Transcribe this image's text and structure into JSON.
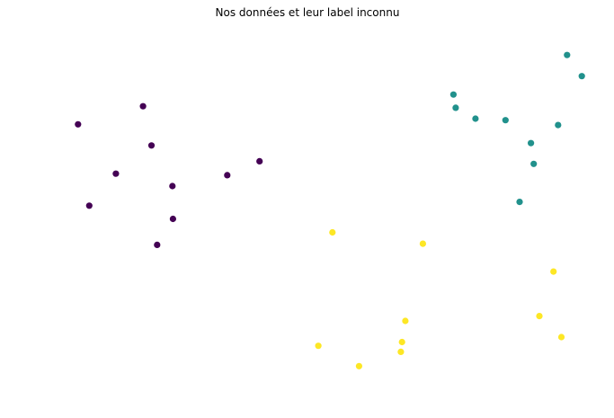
{
  "chart_data": {
    "type": "scatter",
    "title": "Nos données et leur label inconnu",
    "axes_visible": false,
    "grid": false,
    "xlim": [
      0,
      100
    ],
    "ylim": [
      0,
      100
    ],
    "series": [
      {
        "color": "#440154",
        "points": [
          {
            "x": 9.5,
            "y": 73.2
          },
          {
            "x": 21.0,
            "y": 78.0
          },
          {
            "x": 22.5,
            "y": 67.6
          },
          {
            "x": 16.2,
            "y": 60.1
          },
          {
            "x": 11.5,
            "y": 51.6
          },
          {
            "x": 26.2,
            "y": 56.8
          },
          {
            "x": 26.3,
            "y": 48.1
          },
          {
            "x": 23.5,
            "y": 41.2
          },
          {
            "x": 35.9,
            "y": 59.7
          },
          {
            "x": 41.6,
            "y": 63.4
          }
        ]
      },
      {
        "color": "#21918c",
        "points": [
          {
            "x": 96.0,
            "y": 91.6
          },
          {
            "x": 98.6,
            "y": 86.0
          },
          {
            "x": 75.9,
            "y": 81.1
          },
          {
            "x": 76.3,
            "y": 77.6
          },
          {
            "x": 79.8,
            "y": 74.7
          },
          {
            "x": 85.1,
            "y": 74.3
          },
          {
            "x": 89.6,
            "y": 68.2
          },
          {
            "x": 94.4,
            "y": 73.0
          },
          {
            "x": 90.1,
            "y": 62.7
          },
          {
            "x": 87.6,
            "y": 52.6
          }
        ]
      },
      {
        "color": "#fde725",
        "points": [
          {
            "x": 54.5,
            "y": 44.5
          },
          {
            "x": 70.5,
            "y": 41.5
          },
          {
            "x": 93.6,
            "y": 34.1
          },
          {
            "x": 67.4,
            "y": 21.0
          },
          {
            "x": 91.1,
            "y": 22.3
          },
          {
            "x": 95.0,
            "y": 16.7
          },
          {
            "x": 52.0,
            "y": 14.4
          },
          {
            "x": 66.8,
            "y": 15.4
          },
          {
            "x": 66.6,
            "y": 12.8
          },
          {
            "x": 59.2,
            "y": 9.0
          }
        ]
      }
    ]
  }
}
